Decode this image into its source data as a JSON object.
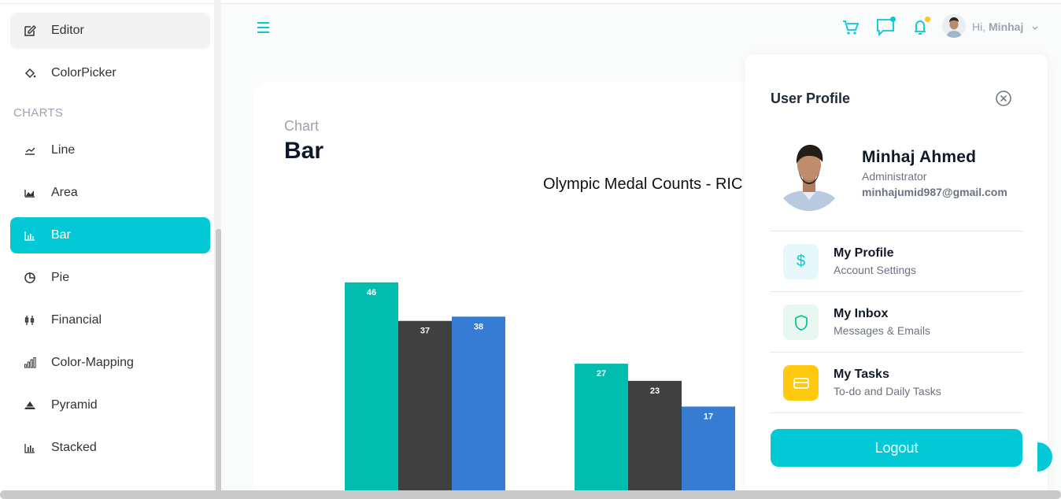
{
  "sidebar": {
    "items": [
      {
        "label": "Editor"
      },
      {
        "label": "ColorPicker"
      },
      {
        "label": "Line"
      },
      {
        "label": "Area"
      },
      {
        "label": "Bar"
      },
      {
        "label": "Pie"
      },
      {
        "label": "Financial"
      },
      {
        "label": "Color-Mapping"
      },
      {
        "label": "Pyramid"
      },
      {
        "label": "Stacked"
      }
    ],
    "section_charts": "CHARTS",
    "active": "Bar"
  },
  "navbar": {
    "greeting": "Hi,",
    "username": "Minhaj",
    "icons": [
      "menu-icon",
      "cart-icon",
      "chat-icon",
      "bell-icon",
      "chevron-down-icon"
    ]
  },
  "page": {
    "crumb": "Chart",
    "title": "Bar"
  },
  "chart_data": {
    "type": "bar",
    "title": "Olympic Medal Counts - RIC",
    "categories": [
      "",
      ""
    ],
    "series": [
      {
        "color": "#00bdae",
        "values": [
          46,
          27
        ]
      },
      {
        "color": "#404041",
        "values": [
          37,
          23
        ]
      },
      {
        "color": "#357cd2",
        "values": [
          38,
          17
        ]
      }
    ],
    "data_labels": true
  },
  "profile": {
    "title": "User Profile",
    "name": "Minhaj Ahmed",
    "role": "Administrator",
    "email": "minhajumid987@gmail.com",
    "rows": [
      {
        "title": "My Profile",
        "subtitle": "Account Settings",
        "icon": "dollar-icon",
        "icon_color": "#03c9d7",
        "icon_bg": "#e7f8fa"
      },
      {
        "title": "My Inbox",
        "subtitle": "Messages & Emails",
        "icon": "shield-icon",
        "icon_color": "#00c292",
        "icon_bg": "#e8f7f0"
      },
      {
        "title": "My Tasks",
        "subtitle": "To-do and Daily Tasks",
        "icon": "card-icon",
        "icon_color": "#ffffff",
        "icon_bg": "#fec90f"
      }
    ],
    "logout_label": "Logout"
  },
  "colors": {
    "accent": "#03c9d7",
    "notify_chat": "#03c9d7",
    "notify_bell": "#fec90f"
  }
}
